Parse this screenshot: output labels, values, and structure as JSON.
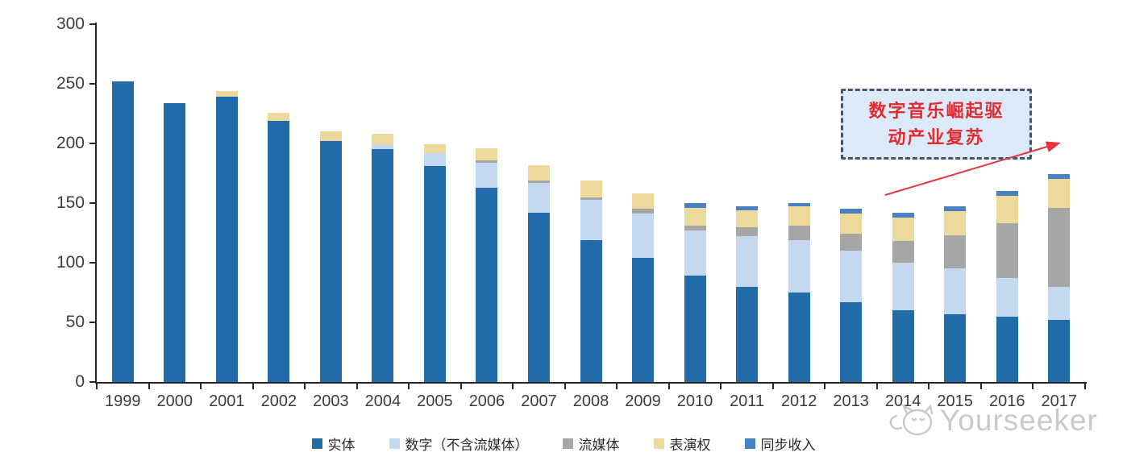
{
  "chart_data": {
    "type": "bar",
    "stacked": true,
    "grid": false,
    "legend_position": "bottom",
    "title": "",
    "xlabel": "",
    "ylabel": "",
    "ylim": [
      0,
      300
    ],
    "yticks": [
      0,
      50,
      100,
      150,
      200,
      250,
      300
    ],
    "categories": [
      "1999",
      "2000",
      "2001",
      "2002",
      "2003",
      "2004",
      "2005",
      "2006",
      "2007",
      "2008",
      "2009",
      "2010",
      "2011",
      "2012",
      "2013",
      "2014",
      "2015",
      "2016",
      "2017"
    ],
    "series": [
      {
        "name": "实体",
        "color": "#1F6CA8",
        "values": [
          252,
          234,
          239,
          219,
          202,
          195,
          181,
          163,
          142,
          119,
          104,
          89,
          80,
          75,
          67,
          60,
          57,
          55,
          52
        ]
      },
      {
        "name": "数字（不含流媒体）",
        "color": "#C4D8EF",
        "values": [
          0,
          0,
          0,
          0,
          0,
          4,
          11,
          21,
          25,
          34,
          37,
          38,
          42,
          44,
          43,
          40,
          38,
          32,
          28
        ]
      },
      {
        "name": "流媒体",
        "color": "#A6A6A6",
        "values": [
          0,
          0,
          0,
          0,
          0,
          0,
          0,
          2,
          2,
          2,
          4,
          4,
          8,
          12,
          14,
          18,
          28,
          46,
          66
        ]
      },
      {
        "name": "表演权",
        "color": "#EDD99C",
        "values": [
          0,
          0,
          5,
          7,
          8,
          9,
          7,
          10,
          13,
          14,
          13,
          15,
          14,
          16,
          17,
          20,
          20,
          23,
          24
        ]
      },
      {
        "name": "同步收入",
        "color": "#4A81C1",
        "values": [
          0,
          0,
          0,
          0,
          0,
          0,
          0,
          0,
          0,
          0,
          0,
          4,
          3,
          3,
          4,
          4,
          4,
          4,
          4
        ]
      }
    ]
  },
  "annotation": {
    "text": "数字音乐崛起驱动产业复苏",
    "line1": "数字音乐崛起驱",
    "line2": "动产业复苏",
    "text_color": "#E02B30",
    "arrow_color": "#E8353B",
    "box_fill": "#DCE9F8",
    "box_border": "#44546A"
  },
  "watermark": {
    "label": "Yourseeker"
  },
  "axis": {
    "color": "#262626",
    "label_color": "#3d3d3d"
  }
}
